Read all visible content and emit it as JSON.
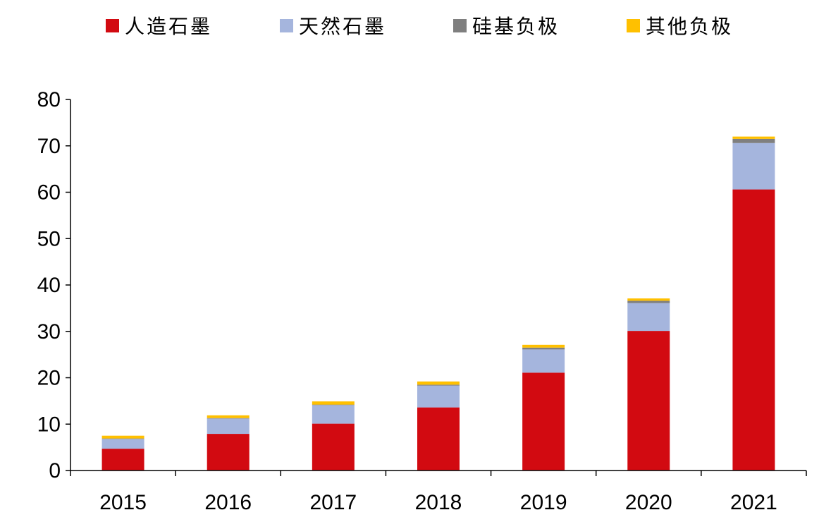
{
  "chart_data": {
    "type": "bar",
    "stacked": true,
    "title": "",
    "xlabel": "",
    "ylabel": "",
    "categories": [
      "2015",
      "2016",
      "2017",
      "2018",
      "2019",
      "2020",
      "2021"
    ],
    "series": [
      {
        "name": "人造石墨",
        "color": "#d20a11",
        "values": [
          4.7,
          7.9,
          10.1,
          13.6,
          21.1,
          30.1,
          60.6
        ]
      },
      {
        "name": "天然石墨",
        "color": "#a5b5dd",
        "values": [
          2.1,
          3.3,
          4.0,
          4.7,
          5.0,
          6.0,
          10.0
        ]
      },
      {
        "name": "硅基负极",
        "color": "#7f7f7f",
        "values": [
          0.1,
          0.1,
          0.1,
          0.2,
          0.4,
          0.5,
          0.9
        ]
      },
      {
        "name": "其他负极",
        "color": "#ffc000",
        "values": [
          0.6,
          0.6,
          0.7,
          0.7,
          0.6,
          0.5,
          0.5
        ]
      }
    ],
    "ylim": [
      0,
      80
    ],
    "yticks": [
      0,
      10,
      20,
      30,
      40,
      50,
      60,
      70,
      80
    ],
    "grid": false,
    "legend_position": "top"
  }
}
